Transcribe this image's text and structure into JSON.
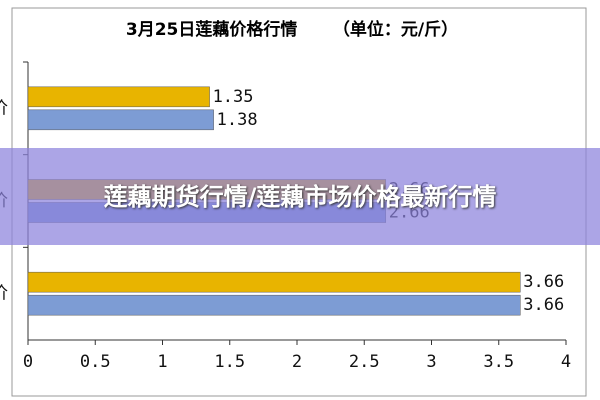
{
  "chart_data": {
    "type": "hbar",
    "title": "3月25日莲藕价格行情      （单位：元/斤）",
    "categories": [
      "价",
      "价",
      "价"
    ],
    "series": [
      {
        "color": "#e8b400",
        "values": [
          1.35,
          2.66,
          3.66
        ],
        "value_labels": [
          "1.35",
          "2.66",
          "3.66"
        ]
      },
      {
        "color": "#7d9cd4",
        "values": [
          1.38,
          2.66,
          3.66
        ],
        "value_labels": [
          "1.38",
          "2.66",
          "3.66"
        ]
      }
    ],
    "xlim": [
      0,
      4
    ],
    "xticks": [
      0,
      0.5,
      1,
      1.5,
      2,
      2.5,
      3,
      3.5,
      4
    ]
  },
  "banner": {
    "text": "莲藕期货行情/莲藕市场价格最新行情"
  }
}
